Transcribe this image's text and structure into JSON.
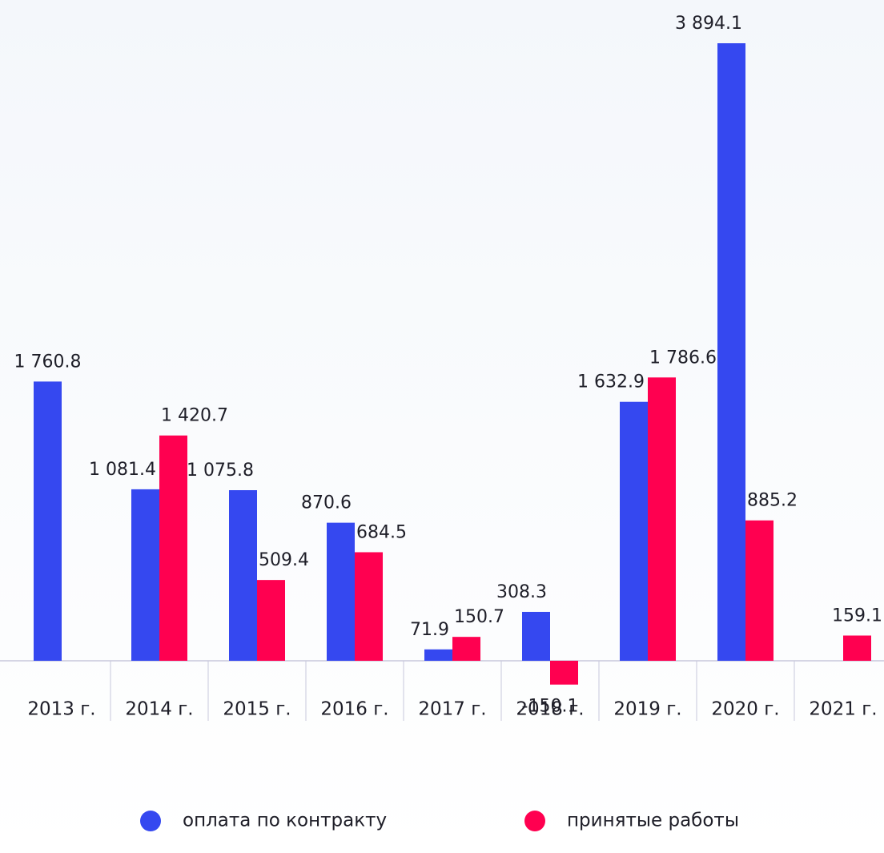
{
  "chart_data": {
    "type": "bar",
    "categories": [
      "2013 г.",
      "2014 г.",
      "2015 г.",
      "2016 г.",
      "2017 г.",
      "2018 г.",
      "2019 г.",
      "2020 г.",
      "2021 г."
    ],
    "series": [
      {
        "name": "оплата по контракту",
        "color": "#3548f0",
        "values": [
          1760.8,
          1081.4,
          1075.8,
          870.6,
          71.9,
          308.3,
          1632.9,
          3894.1,
          null
        ],
        "value_labels": [
          "1 760.8",
          "1 081.4",
          "1 075.8",
          "870.6",
          "71.9",
          "308.3",
          "1 632.9",
          "3 894.1",
          null
        ]
      },
      {
        "name": "принятые работы",
        "color": "#ff0050",
        "values": [
          null,
          1420.7,
          509.4,
          684.5,
          150.7,
          -150.1,
          1786.6,
          885.2,
          159.1
        ],
        "value_labels": [
          null,
          "1 420.7",
          "509.4",
          "684.5",
          "150.7",
          "-150.1",
          "1 786.6",
          "885.2",
          "159.1"
        ]
      }
    ],
    "legend": "bottom"
  }
}
